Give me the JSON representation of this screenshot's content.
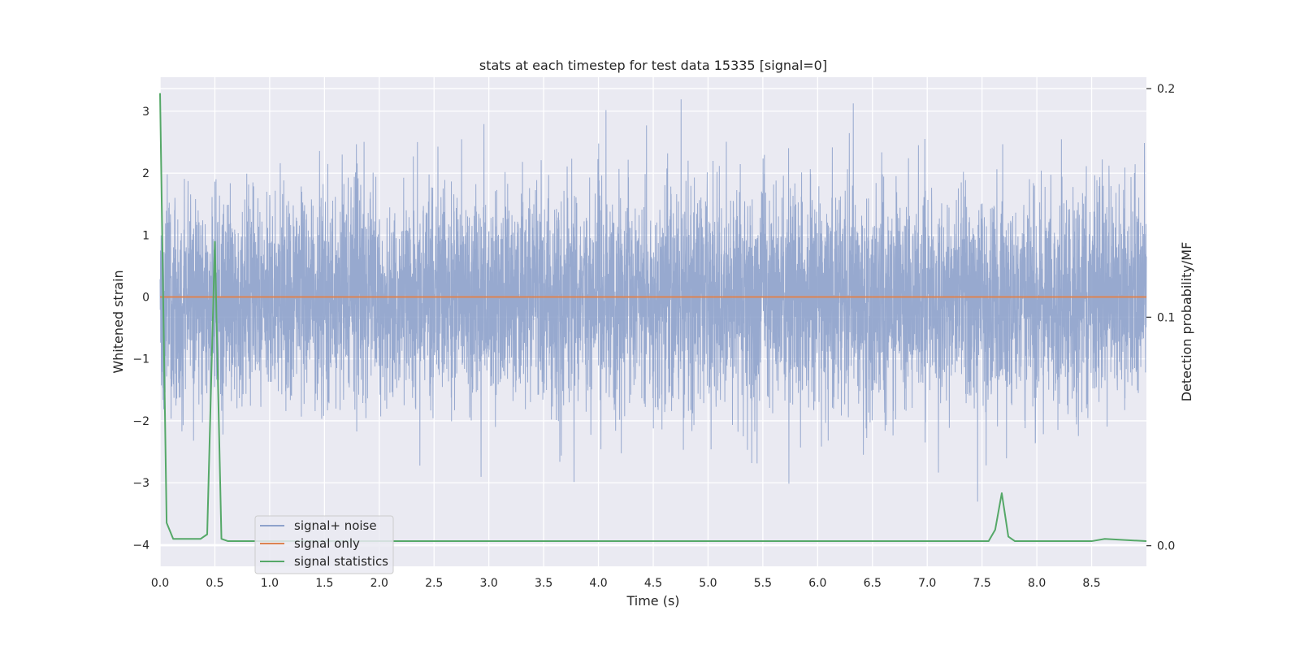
{
  "chart_data": {
    "type": "line",
    "title": "stats at each timestep for test data 15335 [signal=0]",
    "xlabel": "Time (s)",
    "ylabel": "Whitened strain",
    "y2label": "Detection probability/MF",
    "xlim": [
      0.0,
      9.0
    ],
    "ylim": [
      -4.35,
      3.55
    ],
    "y2lim": [
      -0.009,
      0.205
    ],
    "grid": true,
    "legend_position": "lower-left",
    "x_ticks": [
      "0.0",
      "0.5",
      "1.0",
      "1.5",
      "2.0",
      "2.5",
      "3.0",
      "3.5",
      "4.0",
      "4.5",
      "5.0",
      "5.5",
      "6.0",
      "6.5",
      "7.0",
      "7.5",
      "8.0",
      "8.5"
    ],
    "y_ticks": [
      "3",
      "2",
      "1",
      "0",
      "−1",
      "−2",
      "−3",
      "−4"
    ],
    "y2_ticks": [
      "0.2",
      "0.1",
      "0.0"
    ],
    "series": [
      {
        "name": "signal+ noise",
        "color": "#8ea2cb",
        "kind": "noise",
        "sample_rate": 2048,
        "std": 1.0,
        "y_peak_max": 3.25,
        "y_peak_min": -3.45
      },
      {
        "name": "signal only",
        "color": "#dd8452",
        "x": [
          0.0,
          9.0
        ],
        "y": [
          0.0,
          0.0
        ]
      },
      {
        "name": "signal statistics",
        "color": "#55a868",
        "axis": "right",
        "x": [
          0.0,
          0.06,
          0.12,
          0.18,
          0.25,
          0.31,
          0.37,
          0.43,
          0.5,
          0.56,
          0.62,
          0.68,
          0.75,
          1.0,
          2.0,
          3.0,
          4.0,
          5.0,
          6.0,
          7.0,
          7.5,
          7.56,
          7.62,
          7.68,
          7.74,
          7.8,
          7.87,
          8.0,
          8.5,
          8.62,
          9.0
        ],
        "y": [
          0.198,
          0.01,
          0.003,
          0.003,
          0.003,
          0.003,
          0.003,
          0.005,
          0.133,
          0.003,
          0.002,
          0.002,
          0.002,
          0.002,
          0.002,
          0.002,
          0.002,
          0.002,
          0.002,
          0.002,
          0.002,
          0.002,
          0.007,
          0.023,
          0.004,
          0.002,
          0.002,
          0.002,
          0.002,
          0.003,
          0.002
        ]
      }
    ]
  }
}
